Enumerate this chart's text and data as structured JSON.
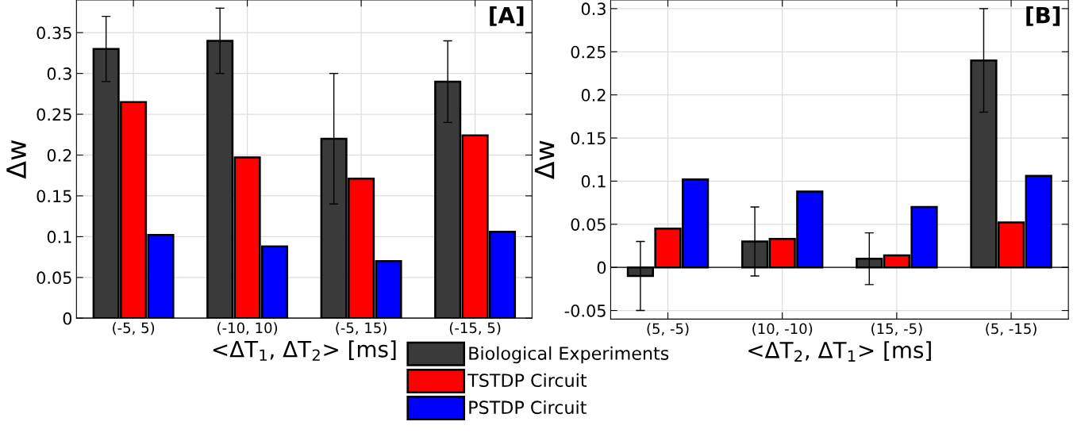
{
  "chart_data": [
    {
      "type": "bar",
      "categories": [
        "(-5, 5)",
        "(-10, 10)",
        "(-5, 15)",
        "(-15, 5)"
      ],
      "xlabel": "<ΔT$_{1}$, ΔT$_{2}$> [ms]",
      "ylabel": "Δw",
      "ylim": [
        0,
        0.39
      ],
      "yticks": [
        0,
        0.05,
        0.1,
        0.15,
        0.2,
        0.25,
        0.3,
        0.35
      ],
      "grid": true,
      "legend": "bottom",
      "annotations": [
        "[A]"
      ],
      "series": [
        {
          "name": "Biological Experiments",
          "color": "#3a3a3a",
          "values": [
            0.33,
            0.34,
            0.22,
            0.29
          ],
          "errors": [
            0.04,
            0.04,
            0.08,
            0.05
          ]
        },
        {
          "name": "TSTDP Circuit",
          "color": "#ff0000",
          "values": [
            0.265,
            0.197,
            0.171,
            0.224
          ]
        },
        {
          "name": "PSTDP Circuit",
          "color": "#0000ff",
          "values": [
            0.102,
            0.088,
            0.07,
            0.106
          ]
        }
      ]
    },
    {
      "type": "bar",
      "categories": [
        "(5, -5)",
        "(10, -10)",
        "(15, -5)",
        "(5, -15)"
      ],
      "xlabel": "<ΔT$_{2}$, ΔT$_{1}$> [ms]",
      "ylabel": "Δw",
      "ylim": [
        -0.06,
        0.31
      ],
      "yticks": [
        -0.05,
        0,
        0.05,
        0.1,
        0.15,
        0.2,
        0.25,
        0.3
      ],
      "grid": true,
      "annotations": [
        "[B]"
      ],
      "series": [
        {
          "color": "#3a3a3a",
          "values": [
            -0.01,
            0.03,
            0.01,
            0.24
          ],
          "errors": [
            0.04,
            0.04,
            0.03,
            0.06
          ]
        },
        {
          "color": "#ff0000",
          "values": [
            0.045,
            0.033,
            0.014,
            0.052
          ]
        },
        {
          "color": "#0000ff",
          "values": [
            0.102,
            0.088,
            0.07,
            0.106
          ]
        }
      ]
    }
  ]
}
